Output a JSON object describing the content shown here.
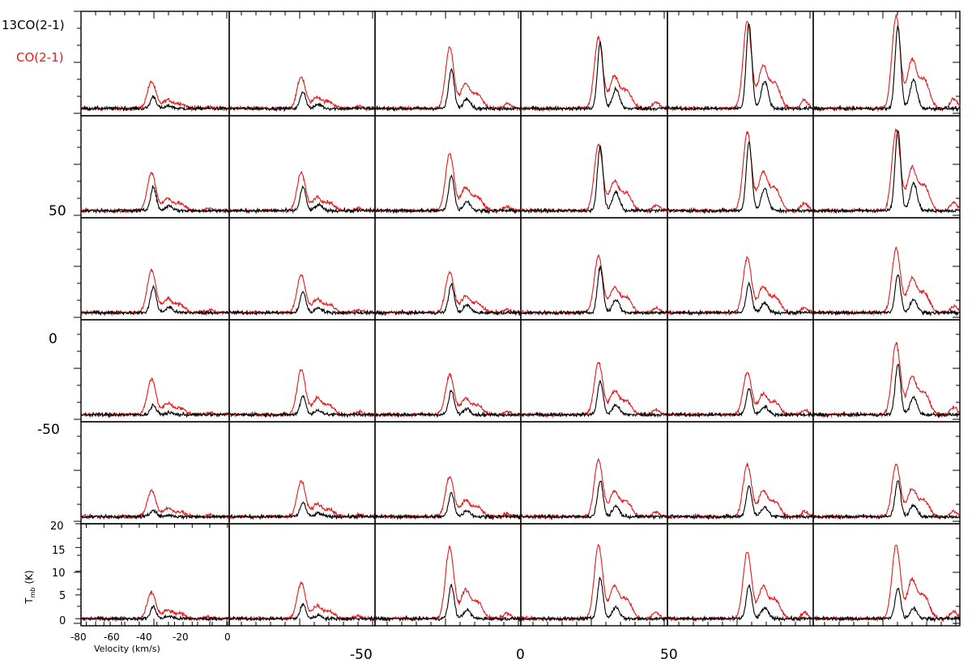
{
  "chart_data": {
    "type": "line",
    "title": "",
    "layout": {
      "rows": 6,
      "cols": 6
    },
    "legend": [
      {
        "name": "13CO(2-1)",
        "color": "#000000"
      },
      {
        "name": "CO(2-1)",
        "color": "#e41a1c"
      }
    ],
    "xlabel": "Velocity (km/s)",
    "ylabel": "T",
    "ylabel_sub": "mb",
    "ylabel_unit": "(K)",
    "panel_xlim": [
      -83,
      1
    ],
    "panel_ylim": [
      -1.5,
      20
    ],
    "panel_xticks": [
      "-80",
      "-60",
      "-40",
      "-20",
      "0"
    ],
    "panel_yticks": [
      "0",
      "5",
      "10",
      "15",
      "20"
    ],
    "offset_x_labels": [
      "-50",
      "0",
      "50"
    ],
    "offset_y_labels": [
      "50",
      "0",
      "-50"
    ],
    "series": [
      {
        "name": "CO(2-1)",
        "color": "#e41a1c",
        "noise": 0.35,
        "components": [
          [
            -43,
            5.8,
            2.4
          ],
          [
            -34,
            3.0,
            2.6
          ],
          [
            -27,
            1.8,
            3.0
          ],
          [
            -10,
            0.6,
            2.0
          ]
        ]
      },
      {
        "name": "13CO(2-1)",
        "color": "#000000",
        "noise": 0.35,
        "components": [
          [
            -42,
            2.6,
            1.6
          ],
          [
            -33,
            0.9,
            2.0
          ]
        ]
      }
    ],
    "panel_peaks": [
      [
        [
          5.5,
          2.5
        ],
        [
          6.5,
          3.5
        ],
        [
          12.5,
          8.0
        ],
        [
          14.5,
          13.5
        ],
        [
          18.0,
          17.5
        ],
        [
          19.0,
          17.0
        ]
      ],
      [
        [
          8.0,
          5.0
        ],
        [
          8.0,
          5.0
        ],
        [
          12.0,
          7.5
        ],
        [
          14.0,
          13.5
        ],
        [
          16.5,
          14.5
        ],
        [
          17.0,
          17.0
        ]
      ],
      [
        [
          9.0,
          5.5
        ],
        [
          8.0,
          4.5
        ],
        [
          8.5,
          6.0
        ],
        [
          12.0,
          9.5
        ],
        [
          11.5,
          6.0
        ],
        [
          13.5,
          8.0
        ]
      ],
      [
        [
          7.5,
          2.0
        ],
        [
          9.5,
          4.0
        ],
        [
          8.5,
          5.0
        ],
        [
          11.0,
          7.0
        ],
        [
          9.0,
          5.5
        ],
        [
          15.0,
          10.5
        ]
      ],
      [
        [
          5.5,
          1.5
        ],
        [
          7.5,
          3.0
        ],
        [
          8.5,
          5.0
        ],
        [
          12.0,
          7.5
        ],
        [
          11.0,
          6.5
        ],
        [
          11.0,
          7.5
        ]
      ],
      [
        [
          5.5,
          2.5
        ],
        [
          7.5,
          3.0
        ],
        [
          15.0,
          7.0
        ],
        [
          15.5,
          8.5
        ],
        [
          14.0,
          7.0
        ],
        [
          15.5,
          6.5
        ]
      ]
    ]
  }
}
